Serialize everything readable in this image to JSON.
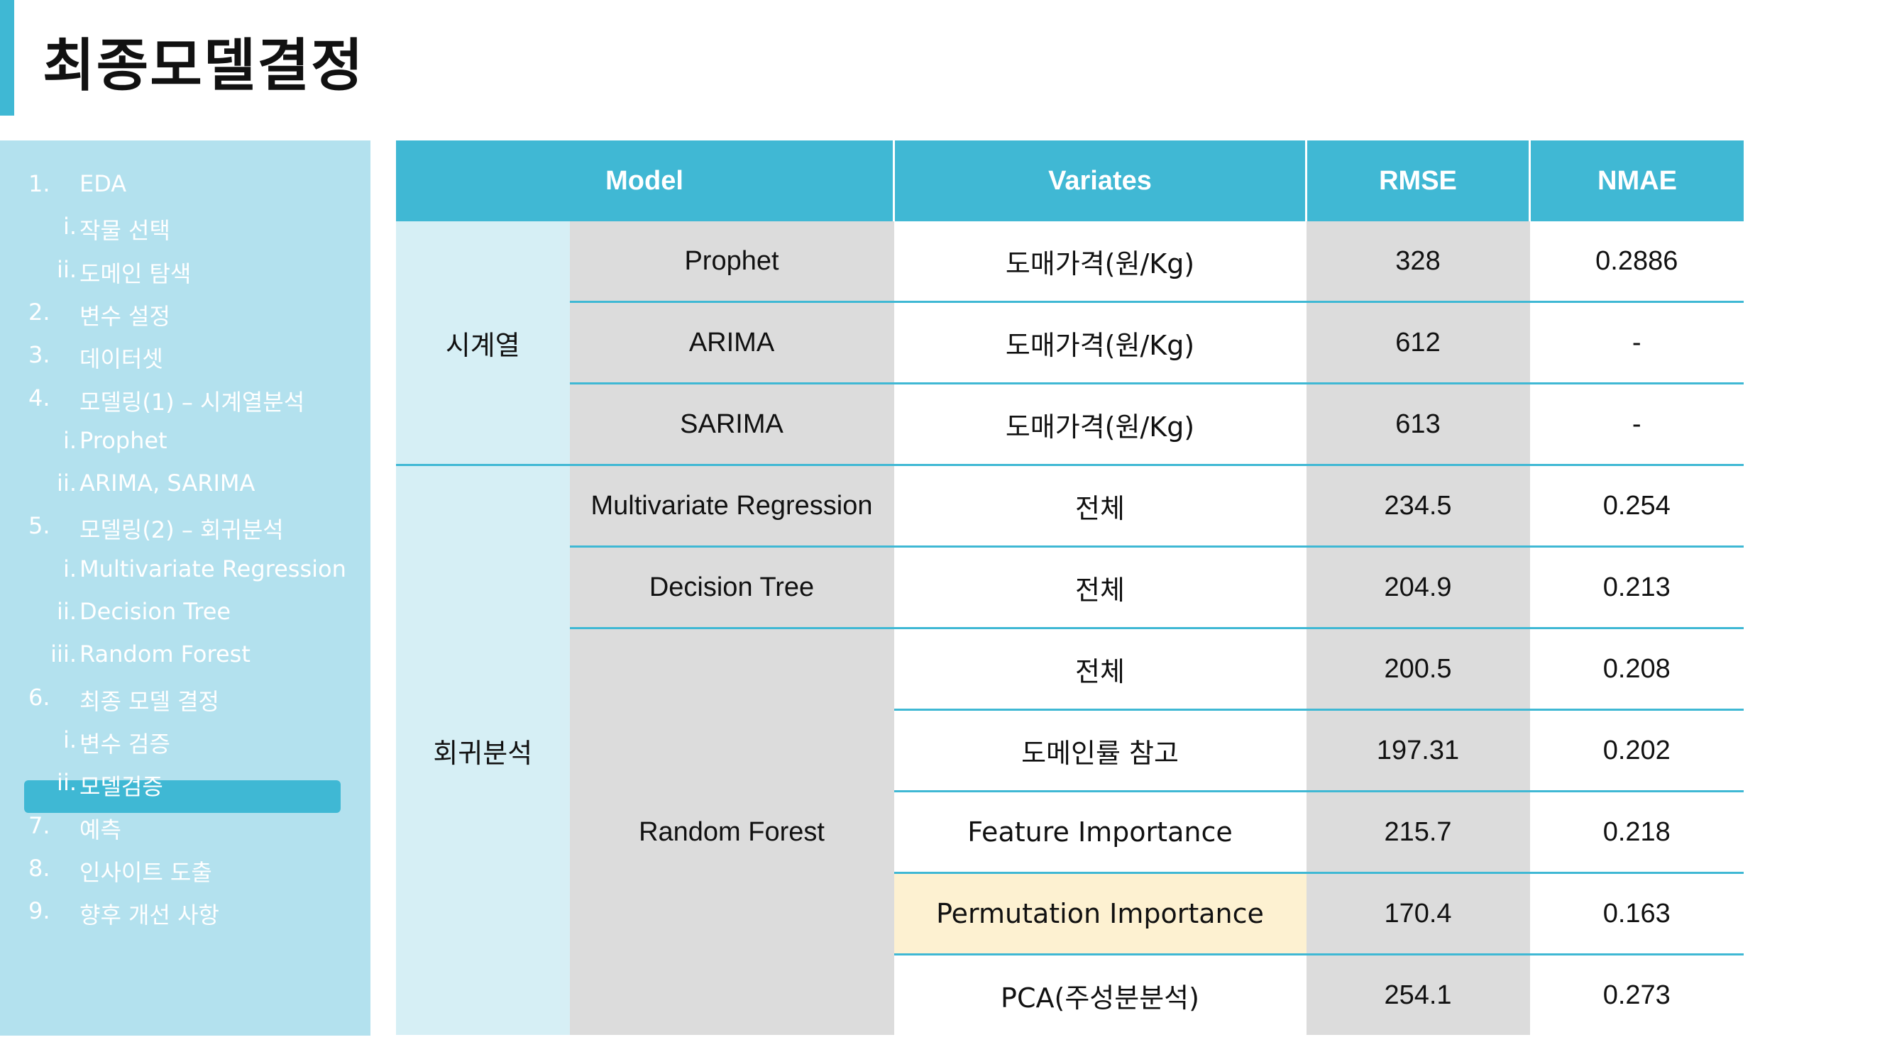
{
  "title": "최종모델결정",
  "toc": [
    {
      "num": "1.",
      "label": "EDA",
      "level": 0
    },
    {
      "num": "i.",
      "label": "작물 선택",
      "level": 1
    },
    {
      "num": "ii.",
      "label": "도메인 탐색",
      "level": 1
    },
    {
      "num": "2.",
      "label": "변수 설정",
      "level": 0
    },
    {
      "num": "3.",
      "label": "데이터셋",
      "level": 0
    },
    {
      "num": "4.",
      "label": "모델링(1) – 시계열분석",
      "level": 0
    },
    {
      "num": "i.",
      "label": "Prophet",
      "level": 1
    },
    {
      "num": "ii.",
      "label": "ARIMA, SARIMA",
      "level": 1
    },
    {
      "num": "5.",
      "label": "모델링(2) – 회귀분석",
      "level": 0
    },
    {
      "num": "i.",
      "label": "Multivariate Regression",
      "level": 1
    },
    {
      "num": "ii.",
      "label": "Decision Tree",
      "level": 1
    },
    {
      "num": "iii.",
      "label": "Random Forest",
      "level": 1
    },
    {
      "num": "6.",
      "label": "최종 모델 결정",
      "level": 0
    },
    {
      "num": "i.",
      "label": "변수 검증",
      "level": 1
    },
    {
      "num": "ii.",
      "label": "모델검증",
      "level": 1,
      "active": true
    },
    {
      "num": "7.",
      "label": "예측",
      "level": 0
    },
    {
      "num": "8.",
      "label": "인사이트 도출",
      "level": 0
    },
    {
      "num": "9.",
      "label": "향후 개선 사항",
      "level": 0
    }
  ],
  "table": {
    "headers": {
      "model": "Model",
      "variates": "Variates",
      "rmse": "RMSE",
      "nmae": "NMAE"
    },
    "groups": {
      "timeseries": "시계열",
      "regression": "회귀분석"
    },
    "models": {
      "prophet": "Prophet",
      "arima": "ARIMA",
      "sarima": "SARIMA",
      "mvr": "Multivariate Regression",
      "dt": "Decision Tree",
      "rf": "Random Forest"
    },
    "rows": [
      {
        "variates": "도매가격(원/Kg)",
        "rmse": "328",
        "nmae": "0.2886"
      },
      {
        "variates": "도매가격(원/Kg)",
        "rmse": "612",
        "nmae": "-"
      },
      {
        "variates": "도매가격(원/Kg)",
        "rmse": "613",
        "nmae": "-"
      },
      {
        "variates": "전체",
        "rmse": "234.5",
        "nmae": "0.254"
      },
      {
        "variates": "전체",
        "rmse": "204.9",
        "nmae": "0.213"
      },
      {
        "variates": "전체",
        "rmse": "200.5",
        "nmae": "0.208"
      },
      {
        "variates": "도메인률 참고",
        "rmse": "197.31",
        "nmae": "0.202"
      },
      {
        "variates": "Feature Importance",
        "rmse": "215.7",
        "nmae": "0.218"
      },
      {
        "variates": "Permutation Importance",
        "rmse": "170.4",
        "nmae": "0.163",
        "highlight": true
      },
      {
        "variates": "PCA(주성분분석)",
        "rmse": "254.1",
        "nmae": "0.273"
      }
    ],
    "highlight_color": "#fdf1d1",
    "header_color": "#40b8d4"
  }
}
